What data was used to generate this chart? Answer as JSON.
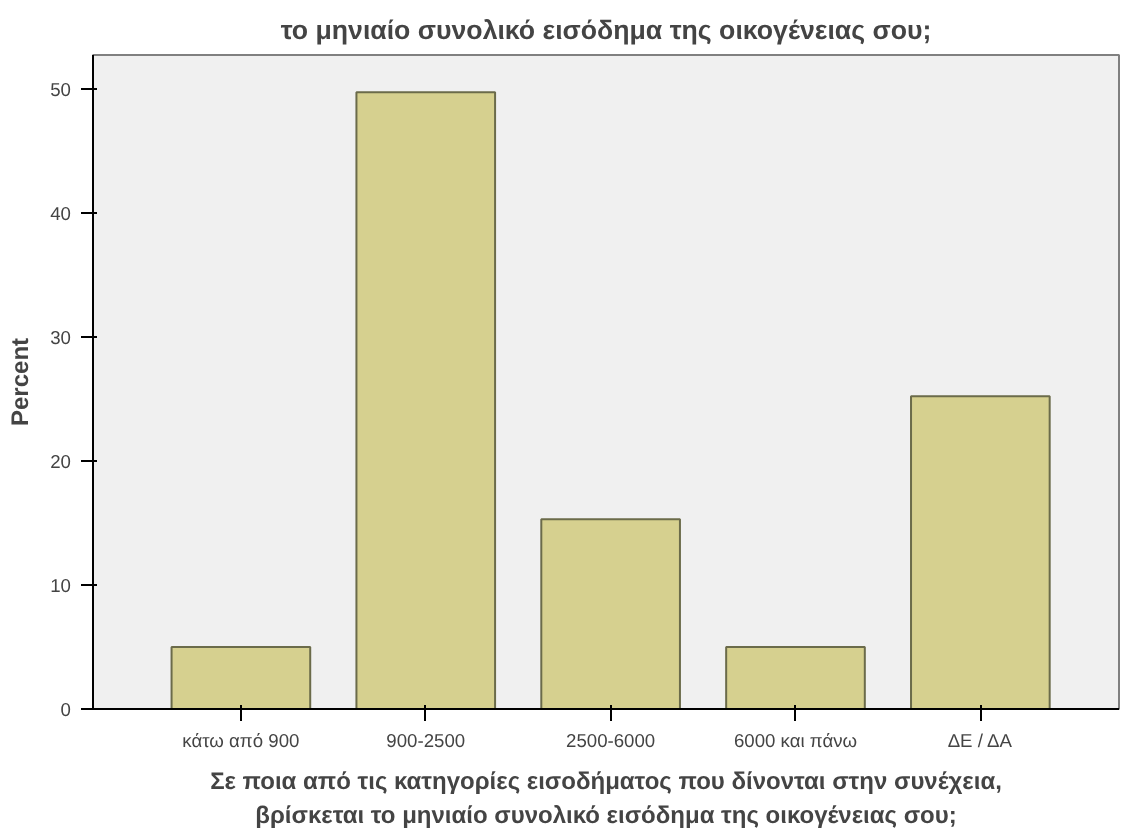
{
  "chart_data": {
    "type": "bar",
    "title": "το μηνιαίο συνολικό εισόδημα της οικογένειας σου;",
    "xlabel": "Σε ποια από τις κατηγορίες εισοδήματος που δίνονται στην συνέχεια,\nβρίσκεται το μηνιαίο συνολικό εισόδημα της οικογένειας σου;",
    "ylabel": "Percent",
    "categories": [
      "κάτω από 900",
      "900-2500",
      "2500-6000",
      "6000 και πάνω",
      "ΔΕ / ΔΑ"
    ],
    "values": [
      5,
      49.7,
      15.3,
      5,
      25.2
    ],
    "color": "#d6d08f",
    "ylim": [
      0,
      52.7
    ],
    "yticks": [
      0,
      10,
      20,
      30,
      40,
      50
    ],
    "grid": false
  }
}
